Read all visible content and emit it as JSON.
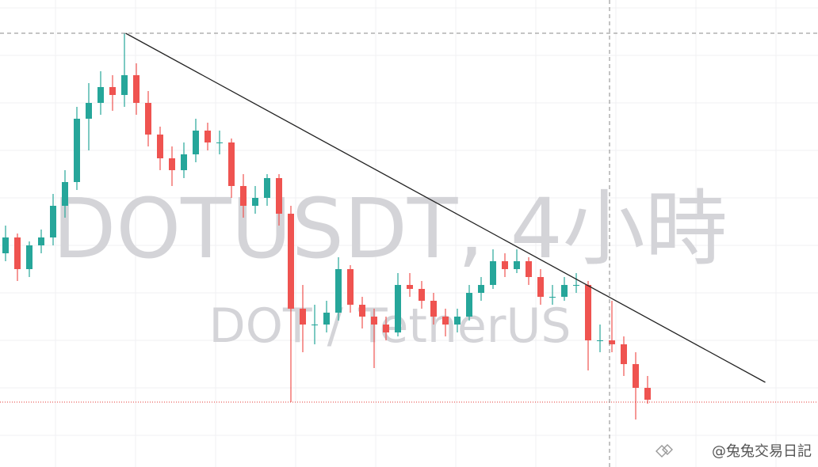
{
  "chart_data": {
    "type": "candlestick",
    "title": "DOTUSDT, 4小時",
    "subtitle": "DOT / TetherUS",
    "annotation": "@兔兔交易日記",
    "up_color": "#26a69a",
    "down_color": "#ef5350",
    "ylim": [
      3,
      8.9
    ],
    "open": [
      5.7,
      5.9,
      5.5,
      5.8,
      5.9,
      6.3,
      6.6,
      7.4,
      7.6,
      7.8,
      7.7,
      7.95,
      7.6,
      7.2,
      6.9,
      6.75,
      6.95,
      7.25,
      7.1,
      7.1,
      6.55,
      6.3,
      6.4,
      6.65,
      6.2,
      5.0,
      4.8,
      4.8,
      4.95,
      5.5,
      5.05,
      4.9,
      4.8,
      4.7,
      5.3,
      5.25,
      5.1,
      4.9,
      4.8,
      4.9,
      5.2,
      5.3,
      5.6,
      5.5,
      5.6,
      5.4,
      5.15,
      5.15,
      5.3,
      5.3,
      4.6,
      4.6,
      4.55,
      4.3,
      4.0
    ],
    "high": [
      6.05,
      5.95,
      5.85,
      6.0,
      6.45,
      6.75,
      7.55,
      7.85,
      8.0,
      7.95,
      8.48,
      8.1,
      7.75,
      7.3,
      7.05,
      7.1,
      7.4,
      7.35,
      7.25,
      7.15,
      6.7,
      6.55,
      6.7,
      6.7,
      6.3,
      5.3,
      5.05,
      5.1,
      5.65,
      5.55,
      5.15,
      5.0,
      4.9,
      5.45,
      5.45,
      5.35,
      5.2,
      5.0,
      5.0,
      5.3,
      5.4,
      5.75,
      5.7,
      5.75,
      5.65,
      5.5,
      5.3,
      5.4,
      5.45,
      5.35,
      4.8,
      5.1,
      4.65,
      4.45,
      4.15
    ],
    "low": [
      5.6,
      5.35,
      5.4,
      5.7,
      5.8,
      6.15,
      6.5,
      7.0,
      7.45,
      7.5,
      7.55,
      7.45,
      7.05,
      6.75,
      6.55,
      6.65,
      6.85,
      7.0,
      6.95,
      6.4,
      6.15,
      6.2,
      6.3,
      6.05,
      3.82,
      4.45,
      4.55,
      4.7,
      4.85,
      4.95,
      4.75,
      4.25,
      4.6,
      4.65,
      5.15,
      5.0,
      4.8,
      4.65,
      4.7,
      4.85,
      5.1,
      5.25,
      5.4,
      5.45,
      5.3,
      5.05,
      5.05,
      5.1,
      5.2,
      4.22,
      4.45,
      4.45,
      4.15,
      3.6,
      3.8
    ],
    "close": [
      5.9,
      5.5,
      5.8,
      5.9,
      6.3,
      6.6,
      7.4,
      7.6,
      7.8,
      7.7,
      7.95,
      7.6,
      7.2,
      6.9,
      6.75,
      6.95,
      7.25,
      7.1,
      7.1,
      6.55,
      6.3,
      6.4,
      6.65,
      6.2,
      5.0,
      4.8,
      4.8,
      4.95,
      5.5,
      5.05,
      4.9,
      4.8,
      4.7,
      5.3,
      5.25,
      5.1,
      4.9,
      4.8,
      4.9,
      5.2,
      5.3,
      5.6,
      5.5,
      5.6,
      5.4,
      5.15,
      5.15,
      5.3,
      5.3,
      4.6,
      4.6,
      4.55,
      4.3,
      4.0,
      3.85
    ],
    "trendline": {
      "x": [
        10.1,
        63.9
      ],
      "y": [
        8.48,
        4.07
      ],
      "color": "#222222"
    },
    "price_line": 3.82,
    "price_line_color": "#e53935",
    "grid": true
  }
}
